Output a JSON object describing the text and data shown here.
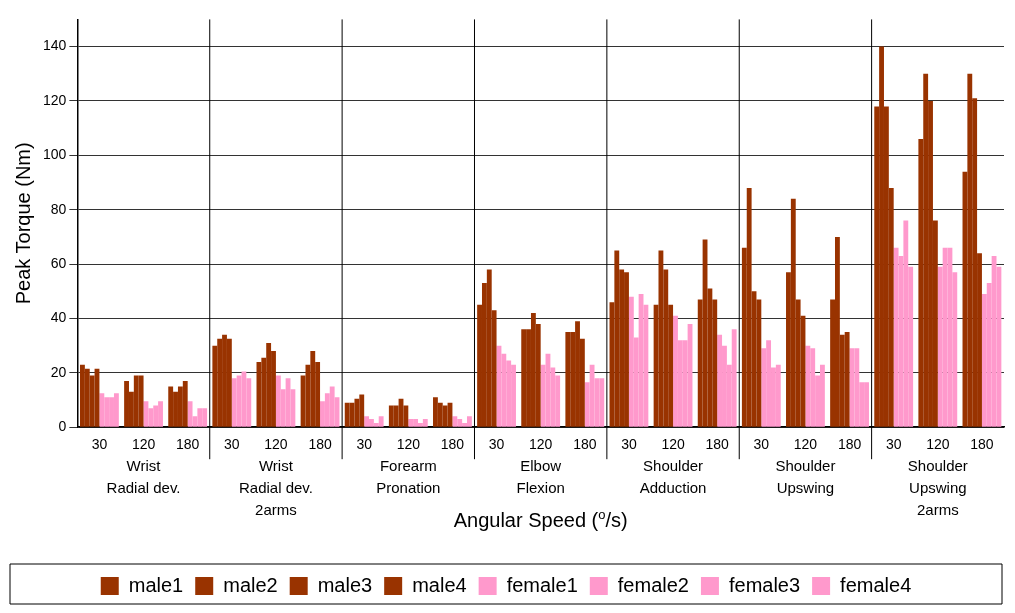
{
  "chart_data": {
    "type": "bar",
    "ylabel": "Peak Torque (Nm)",
    "xlabel": "Angular Speed ($^{o}$/s)",
    "categories": [
      "30",
      "120",
      "180",
      "30",
      "120",
      "180",
      "30",
      "120",
      "180",
      "30",
      "120",
      "180",
      "30",
      "120",
      "180",
      "30",
      "120",
      "180",
      "30",
      "120",
      "180"
    ],
    "annotations": [
      "Wrist\nRadial dev.",
      "Wrist\nRadial dev.\n2arms",
      "Forearm\nPronation",
      "Elbow\nFlexion",
      "Shoulder\nAdduction",
      "Shoulder\nUpswing",
      "Shoulder\nUpswing\n2arms"
    ],
    "series": [
      {
        "name": "male1",
        "color": "#993300",
        "values": [
          23,
          17,
          15,
          30,
          24,
          19,
          9,
          8,
          11,
          45,
          36,
          35,
          46,
          45,
          47,
          66,
          57,
          47,
          118,
          106,
          94
        ]
      },
      {
        "name": "male2",
        "color": "#993300",
        "values": [
          21.5,
          13,
          13,
          32.5,
          25.5,
          23,
          9,
          8,
          9,
          53,
          36,
          35,
          65,
          65,
          69,
          88,
          84,
          70,
          140,
          130,
          130
        ]
      },
      {
        "name": "male3",
        "color": "#993300",
        "values": [
          19,
          19,
          15,
          34,
          31,
          28,
          10.5,
          10.5,
          8,
          58,
          42,
          39,
          58,
          58,
          51,
          50,
          47,
          34,
          118,
          120,
          121
        ]
      },
      {
        "name": "male4",
        "color": "#993300",
        "values": [
          21.5,
          19,
          17,
          32.5,
          28,
          24,
          12,
          8,
          9,
          43,
          38,
          32.5,
          57,
          45,
          47,
          47,
          41,
          35,
          88,
          76,
          64
        ]
      },
      {
        "name": "female1",
        "color": "#ff99cc",
        "values": [
          12.5,
          9.5,
          9.5,
          18,
          19,
          9.5,
          4,
          3,
          4,
          30,
          23,
          16.5,
          48,
          41,
          34,
          29,
          30,
          29,
          66,
          59,
          49
        ]
      },
      {
        "name": "female2",
        "color": "#ff99cc",
        "values": [
          11,
          7,
          4,
          19,
          14,
          12.5,
          3,
          3,
          3,
          27,
          27,
          23,
          33,
          32,
          30,
          32,
          29,
          29,
          63,
          66,
          53
        ]
      },
      {
        "name": "female3",
        "color": "#ff99cc",
        "values": [
          11,
          8,
          7,
          20.5,
          18,
          15,
          1.5,
          1.5,
          1.5,
          24.5,
          22,
          18,
          49,
          32,
          23,
          22,
          19,
          16.5,
          76,
          66,
          63
        ]
      },
      {
        "name": "female4",
        "color": "#ff99cc",
        "values": [
          12.5,
          9.5,
          7,
          18,
          14,
          11,
          4,
          3,
          4,
          23,
          19,
          18,
          45,
          38,
          36,
          23,
          23,
          16.5,
          59,
          57,
          59
        ]
      }
    ],
    "ylim": [
      0,
      150
    ],
    "yticks": [
      0,
      20,
      40,
      60,
      80,
      100,
      120,
      140
    ],
    "grid": "y",
    "legend": "bottom"
  }
}
